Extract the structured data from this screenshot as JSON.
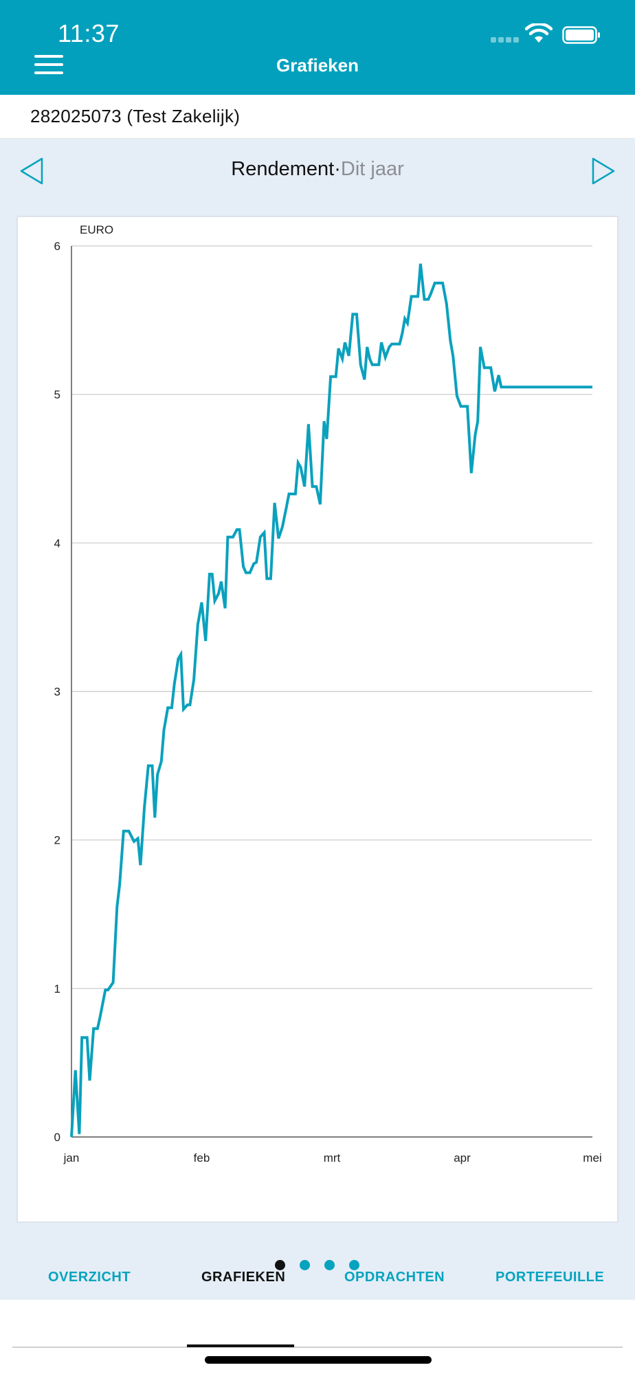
{
  "status_bar": {
    "time": "11:37"
  },
  "header": {
    "title": "Grafieken",
    "menu_icon": "hamburger-menu-icon"
  },
  "account": {
    "label": "282025073 (Test Zakelijk)"
  },
  "chart_nav": {
    "title": "Rendement",
    "separator": "·",
    "period": "Dit jaar",
    "prev_icon": "triangle-left-icon",
    "next_icon": "triangle-right-icon"
  },
  "colors": {
    "brand": "#02a0bc",
    "line": "#0aa1bd",
    "background": "#e5edf6"
  },
  "chart_data": {
    "type": "line",
    "ylabel": "EURO",
    "ylim": [
      0,
      6
    ],
    "yticks": [
      "0",
      "1",
      "2",
      "3",
      "4",
      "5",
      "6"
    ],
    "x_month_labels": [
      "jan",
      "feb",
      "mrt",
      "apr",
      "mei"
    ],
    "xlim": [
      0,
      4
    ],
    "grid": true,
    "series": [
      {
        "x": [
          0,
          0.03,
          0.06,
          0.08,
          0.12,
          0.14,
          0.17,
          0.2,
          0.22,
          0.26,
          0.28,
          0.32,
          0.35,
          0.37,
          0.4,
          0.44,
          0.48,
          0.51,
          0.53,
          0.56,
          0.59,
          0.62,
          0.64,
          0.66,
          0.69,
          0.71,
          0.74,
          0.77,
          0.79,
          0.82,
          0.84,
          0.86,
          0.89,
          0.91,
          0.94,
          0.97,
          1.0,
          1.03,
          1.06,
          1.08,
          1.1,
          1.13,
          1.15,
          1.18,
          1.2,
          1.22,
          1.24,
          1.27,
          1.29,
          1.32,
          1.34,
          1.37,
          1.4,
          1.42,
          1.45,
          1.48,
          1.5,
          1.53,
          1.56,
          1.59,
          1.62,
          1.65,
          1.67,
          1.7,
          1.72,
          1.74,
          1.76,
          1.79,
          1.82,
          1.85,
          1.88,
          1.91,
          1.94,
          1.96,
          1.99,
          2.01,
          2.03,
          2.05,
          2.08,
          2.1,
          2.13,
          2.16,
          2.19,
          2.22,
          2.25,
          2.27,
          2.29,
          2.31,
          2.33,
          2.36,
          2.38,
          2.41,
          2.44,
          2.46,
          2.48,
          2.5,
          2.52,
          2.54,
          2.56,
          2.58,
          2.61,
          2.63,
          2.66,
          2.68,
          2.71,
          2.74,
          2.76,
          2.79,
          2.82,
          2.85,
          2.88,
          2.91,
          2.93,
          2.96,
          2.99,
          3.01,
          3.04,
          3.07,
          3.1,
          3.12,
          3.14,
          3.17,
          3.19,
          3.22,
          3.25,
          3.28,
          3.3,
          3.33,
          3.36,
          3.38,
          3.41,
          3.44,
          3.47,
          3.5,
          3.52,
          3.55,
          3.58,
          3.6,
          3.62,
          3.65,
          3.68,
          3.71,
          3.74,
          3.76,
          3.78,
          3.81,
          3.84,
          3.87,
          3.89,
          3.91,
          3.93,
          3.95,
          3.97,
          4.0
        ],
        "values": [
          0,
          0.45,
          0.02,
          0.67,
          0.67,
          0.38,
          0.73,
          0.73,
          0.81,
          0.99,
          0.99,
          1.04,
          1.55,
          1.7,
          2.06,
          2.06,
          1.99,
          2.01,
          1.83,
          2.22,
          2.5,
          2.5,
          2.15,
          2.44,
          2.53,
          2.74,
          2.89,
          2.89,
          3.05,
          3.22,
          3.25,
          2.88,
          2.91,
          2.91,
          3.08,
          3.45,
          3.6,
          3.34,
          3.79,
          3.79,
          3.61,
          3.66,
          3.74,
          3.56,
          4.04,
          4.04,
          4.04,
          4.09,
          4.09,
          3.84,
          3.8,
          3.8,
          3.86,
          3.87,
          4.04,
          4.07,
          3.76,
          3.76,
          4.27,
          4.03,
          4.11,
          4.24,
          4.33,
          4.33,
          4.33,
          4.54,
          4.51,
          4.38,
          4.8,
          4.38,
          4.38,
          4.26,
          4.82,
          4.7,
          5.12,
          5.12,
          5.12,
          5.31,
          5.24,
          5.35,
          5.26,
          5.54,
          5.54,
          5.2,
          5.1,
          5.32,
          5.24,
          5.2,
          5.2,
          5.2,
          5.35,
          5.25,
          5.32,
          5.34,
          5.34,
          5.34,
          5.34,
          5.41,
          5.51,
          5.48,
          5.66,
          5.66,
          5.66,
          5.88,
          5.64,
          5.64,
          5.68,
          5.75,
          5.75,
          5.75,
          5.61,
          5.36,
          5.26,
          4.99,
          4.92,
          4.92,
          4.92,
          4.47,
          4.73,
          4.82,
          5.32,
          5.18,
          5.18,
          5.18,
          5.02,
          5.13,
          5.05,
          5.05,
          5.05,
          5.05,
          5.05,
          5.05,
          5.05,
          5.05,
          5.05,
          5.05,
          5.05,
          5.05,
          5.05,
          5.05,
          5.05,
          5.05,
          5.05,
          5.05,
          5.05,
          5.05,
          5.05,
          5.05,
          5.05,
          5.05,
          5.05,
          5.05,
          5.05,
          5.05
        ]
      }
    ]
  },
  "pager": {
    "count": 4,
    "active": 0
  },
  "tabs": [
    {
      "label": "OVERZICHT"
    },
    {
      "label": "GRAFIEKEN"
    },
    {
      "label": "OPDRACHTEN"
    },
    {
      "label": "PORTEFEUILLE"
    }
  ]
}
